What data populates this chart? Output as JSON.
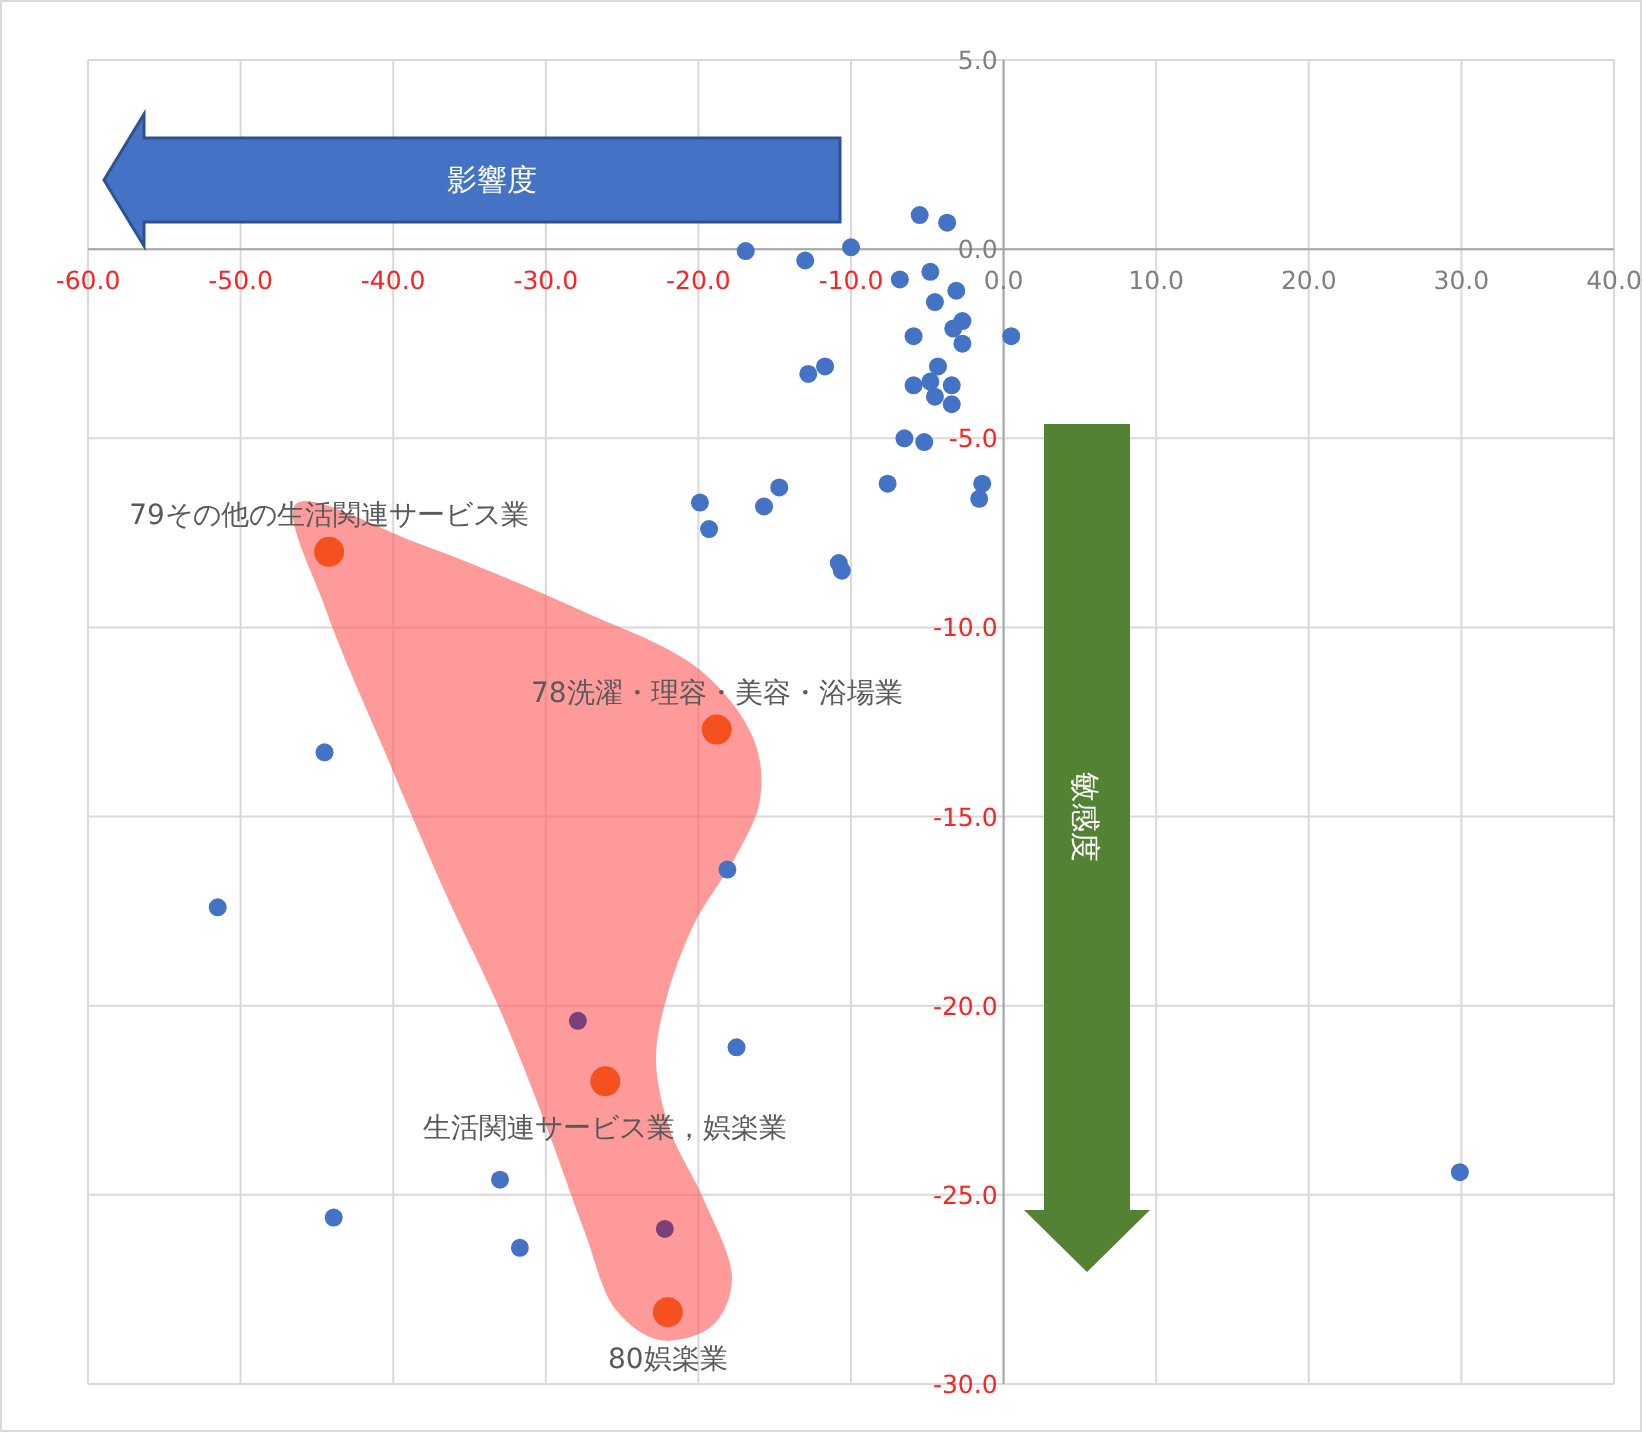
{
  "chart_data": {
    "type": "scatter",
    "xlim": [
      -60,
      40
    ],
    "ylim": [
      -30,
      5
    ],
    "xticks": [
      {
        "value": -60,
        "label": "-60.0"
      },
      {
        "value": -50,
        "label": "-50.0"
      },
      {
        "value": -40,
        "label": "-40.0"
      },
      {
        "value": -30,
        "label": "-30.0"
      },
      {
        "value": -20,
        "label": "-20.0"
      },
      {
        "value": -10,
        "label": "-10.0"
      },
      {
        "value": 0,
        "label": "0.0"
      },
      {
        "value": 10,
        "label": "10.0"
      },
      {
        "value": 20,
        "label": "20.0"
      },
      {
        "value": 30,
        "label": "30.0"
      },
      {
        "value": 40,
        "label": "40.0"
      }
    ],
    "yticks": [
      {
        "value": 5,
        "label": "5.0"
      },
      {
        "value": 0,
        "label": "0.0"
      },
      {
        "value": -5,
        "label": "-5.0"
      },
      {
        "value": -10,
        "label": "-10.0"
      },
      {
        "value": -15,
        "label": "-15.0"
      },
      {
        "value": -20,
        "label": "-20.0"
      },
      {
        "value": -25,
        "label": "-25.0"
      },
      {
        "value": -30,
        "label": "-30.0"
      }
    ],
    "grid": true,
    "marker": "circle",
    "series": [
      {
        "color": "#4472c4",
        "x": [
          -5.5,
          -3.7,
          -16.9,
          -13.0,
          -10.0,
          -6.8,
          -4.8,
          -3.1,
          -4.5,
          0.5,
          -2.7,
          -3.3,
          -2.7,
          -5.9,
          -11.7,
          -12.8,
          -4.3,
          -5.9,
          -4.8,
          -3.4,
          -4.5,
          -3.4,
          -6.5,
          -5.2,
          -7.6,
          -1.4,
          -1.6,
          -14.7,
          -15.7,
          -19.9,
          -19.3,
          -10.8,
          -10.6,
          -44.5,
          -51.5,
          -18.1,
          -17.5,
          -33.0,
          -43.9,
          -31.7,
          29.9
        ],
        "values": [
          0.9,
          0.7,
          -0.05,
          -0.3,
          0.05,
          -0.8,
          -0.6,
          -1.1,
          -1.4,
          -2.3,
          -1.9,
          -2.1,
          -2.5,
          -2.3,
          -3.1,
          -3.3,
          -3.1,
          -3.6,
          -3.5,
          -3.6,
          -3.9,
          -4.1,
          -5.0,
          -5.1,
          -6.2,
          -6.2,
          -6.6,
          -6.3,
          -6.8,
          -6.7,
          -7.4,
          -8.3,
          -8.5,
          -13.3,
          -17.4,
          -16.4,
          -21.1,
          -24.6,
          -25.6,
          -26.4,
          -24.4
        ]
      },
      {
        "color": "#7b3f7a",
        "x": [
          -27.9,
          -22.2
        ],
        "values": [
          -20.4,
          -25.9
        ]
      },
      {
        "color": "#f4511e",
        "x": [
          -44.2,
          -18.8,
          -26.1,
          -22.0
        ],
        "values": [
          -8.0,
          -12.7,
          -22.0,
          -28.1
        ]
      }
    ],
    "annotations": [
      {
        "text": "79その他の生活関連サービス業",
        "x": -44.2,
        "y": -8.0
      },
      {
        "text": "78洗濯・理容・美容・浴場業",
        "x": -18.8,
        "y": -12.7
      },
      {
        "text": "生活関連サービス業，娯楽業",
        "x": -26.1,
        "y": -22.0
      },
      {
        "text": "80娯楽業",
        "x": -22.0,
        "y": -28.1
      },
      "影響度",
      "敏感度"
    ]
  }
}
